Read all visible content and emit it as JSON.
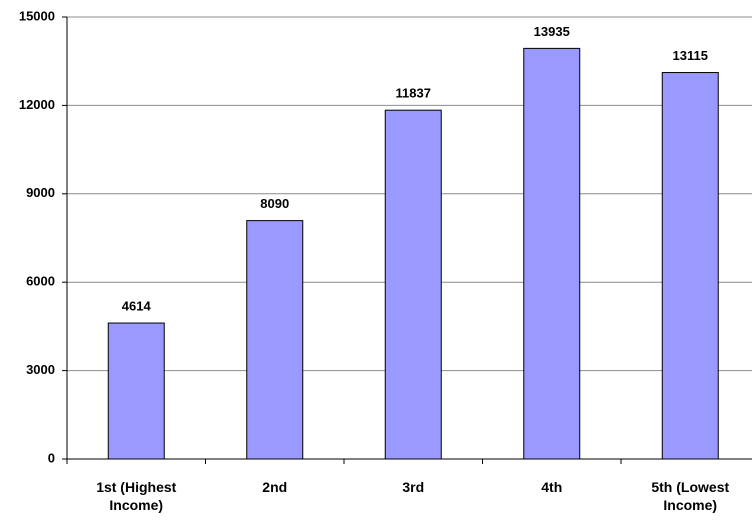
{
  "chart_data": {
    "type": "bar",
    "categories": [
      "1st (Highest Income)",
      "2nd",
      "3rd",
      "4th",
      "5th (Lowest Income)"
    ],
    "values": [
      4614,
      8090,
      11837,
      13935,
      13115
    ],
    "color": "#9999ff",
    "ylim": [
      0,
      15000
    ],
    "yticks": [
      0,
      3000,
      6000,
      9000,
      12000,
      15000
    ],
    "grid": true
  }
}
